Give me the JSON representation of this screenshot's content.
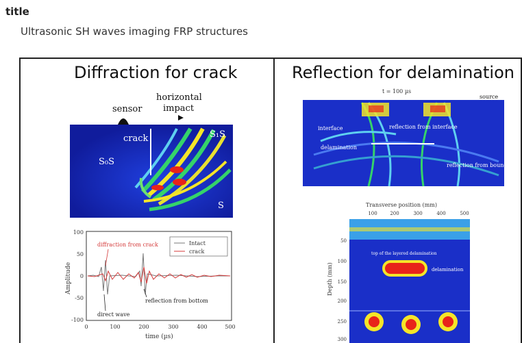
{
  "header": {
    "label": "title",
    "subtitle": "Ultrasonic SH waves imaging FRP structures"
  },
  "left_panel": {
    "heading": "Diffraction for crack",
    "sim": {
      "sensor": "sensor",
      "horizontal": "horizontal",
      "impact": "impact",
      "crack": "crack",
      "s0s": "S₀S",
      "s1s": "S₁S",
      "s": "S"
    },
    "plot": {
      "ylabel": "Amplitude",
      "xlabel": "time (µs)",
      "annot_crack": "diffraction from crack",
      "annot_direct": "direct wave",
      "annot_bottom": "reflection from bottom",
      "legend": [
        "Intact",
        "crack"
      ],
      "yticks": [
        "100",
        "50",
        "0",
        "-50",
        "-100"
      ],
      "xticks": [
        "0",
        "100",
        "200",
        "300",
        "400",
        "500"
      ]
    }
  },
  "right_panel": {
    "heading": "Reflection for delamination",
    "top_image": {
      "time_label": "t = 100 µs",
      "source": "source",
      "interface": "interface",
      "delamination": "delamination",
      "reflection_from_interface": "reflection from interface",
      "reflection_from_boundary": "reflection from boundary"
    },
    "bottom_image": {
      "xlabel": "Transverse position (mm)",
      "ylabel": "Depth (mm)",
      "xticks": [
        "100",
        "200",
        "300",
        "400",
        "500"
      ],
      "yticks": [
        "50",
        "100",
        "150",
        "200",
        "250",
        "300"
      ],
      "delamination": "delamination",
      "top_note": "top of the layered delamination"
    }
  },
  "colors": {
    "field_blue": "#1a2fc8",
    "hot_red": "#e8231a",
    "hot_yellow": "#f5e528",
    "hot_green": "#35d36a",
    "trace_red": "#d43a3a",
    "trace_gray": "#777777"
  }
}
